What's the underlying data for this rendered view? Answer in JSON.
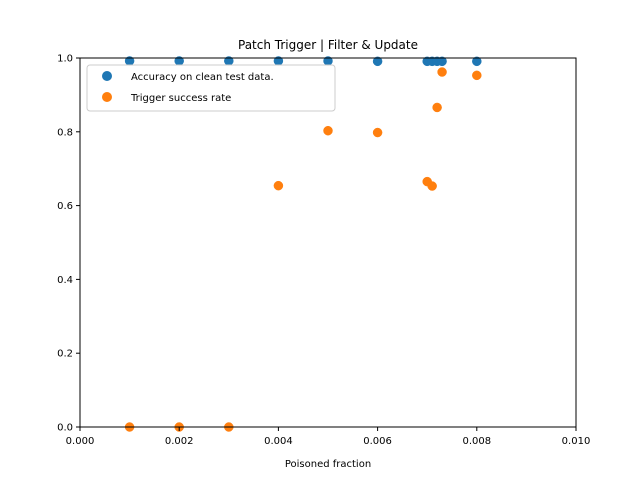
{
  "chart_data": {
    "type": "scatter",
    "title": "Patch Trigger | Filter & Update",
    "xlabel": "Poisoned fraction",
    "ylabel": "",
    "xlim": [
      0,
      0.01
    ],
    "ylim": [
      0,
      1.0
    ],
    "x_ticks": [
      "0.000",
      "0.002",
      "0.004",
      "0.006",
      "0.008",
      "0.010"
    ],
    "y_ticks": [
      "0.0",
      "0.2",
      "0.4",
      "0.6",
      "0.8",
      "1.0"
    ],
    "grid": false,
    "legend_position": "upper-left",
    "series": [
      {
        "name": "Accuracy on clean test data.",
        "color": "#1f77b4",
        "points": [
          {
            "x": 0.001,
            "y": 0.992
          },
          {
            "x": 0.002,
            "y": 0.992
          },
          {
            "x": 0.003,
            "y": 0.992
          },
          {
            "x": 0.004,
            "y": 0.992
          },
          {
            "x": 0.005,
            "y": 0.992
          },
          {
            "x": 0.006,
            "y": 0.991
          },
          {
            "x": 0.007,
            "y": 0.991
          },
          {
            "x": 0.0071,
            "y": 0.991
          },
          {
            "x": 0.0072,
            "y": 0.991
          },
          {
            "x": 0.0073,
            "y": 0.991
          },
          {
            "x": 0.008,
            "y": 0.991
          }
        ]
      },
      {
        "name": "Trigger success rate",
        "color": "#ff7f0e",
        "points": [
          {
            "x": 0.001,
            "y": 0.0
          },
          {
            "x": 0.002,
            "y": 0.0
          },
          {
            "x": 0.003,
            "y": 0.0
          },
          {
            "x": 0.004,
            "y": 0.654
          },
          {
            "x": 0.005,
            "y": 0.803
          },
          {
            "x": 0.006,
            "y": 0.798
          },
          {
            "x": 0.007,
            "y": 0.665
          },
          {
            "x": 0.0071,
            "y": 0.653
          },
          {
            "x": 0.0072,
            "y": 0.866
          },
          {
            "x": 0.0073,
            "y": 0.962
          },
          {
            "x": 0.008,
            "y": 0.953
          }
        ]
      }
    ]
  }
}
